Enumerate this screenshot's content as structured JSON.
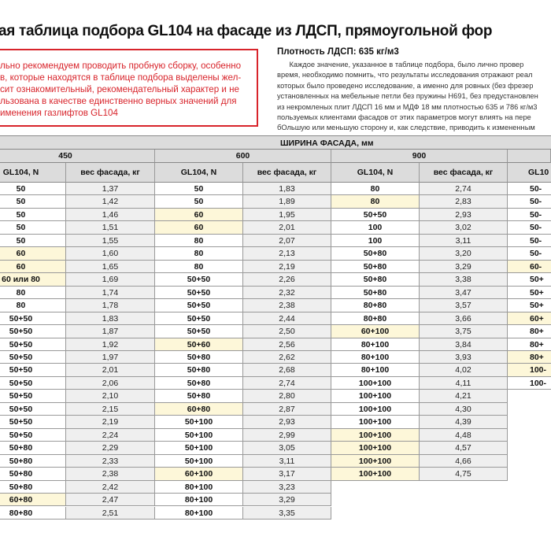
{
  "title": "ая таблица подбора GL104 на фасаде из ЛДСП, прямоугольной фор",
  "warning_lines": [
    "льно рекомендуем проводить пробную сборку, особенно",
    "в, которые находятся в таблице подбора выделены жел-",
    "сит ознакомительный, рекомендательный характер и не",
    "льзована в качестве единственно верных значений для",
    "именения газлифтов GL104"
  ],
  "density": "Плотность ЛДСП: 635 кг/м3",
  "paragraph_lines": [
    "      Каждое значение, указанное в таблице подбора, было лично провер",
    "время, необходимо помнить, что результаты исследования отражают реал",
    "которых было проведено исследование, а именно для ровных (без фрезер",
    "установленных на мебельные петли без пружины H691, без предустановлен",
    "из некромленых плит ЛДСП 16 мм и МДФ 18 мм плотностью 635 и 786  кг/м3",
    "пользуемых клиентами фасадов от этих параметров могут влиять на пере",
    "бОльшую или меньшую сторону и, как следствие, приводить к измененным"
  ],
  "colors": {
    "warning": "#d8242b",
    "highlight": "#fdf7d9",
    "header": "#dcdcdc"
  },
  "table": {
    "caption": "ШИРИНА ФАСАДА, мм",
    "groups": [
      {
        "width": "450",
        "col_gl": "GL104, N",
        "col_w": "вес фасада, кг",
        "rows": [
          [
            "50",
            "1,37",
            0
          ],
          [
            "50",
            "1,42",
            0
          ],
          [
            "50",
            "1,46",
            0
          ],
          [
            "50",
            "1,51",
            0
          ],
          [
            "50",
            "1,55",
            0
          ],
          [
            "60",
            "1,60",
            1
          ],
          [
            "60",
            "1,65",
            1
          ],
          [
            "60 или 80",
            "1,69",
            1
          ],
          [
            "80",
            "1,74",
            0
          ],
          [
            "80",
            "1,78",
            0
          ],
          [
            "50+50",
            "1,83",
            0
          ],
          [
            "50+50",
            "1,87",
            0
          ],
          [
            "50+50",
            "1,92",
            0
          ],
          [
            "50+50",
            "1,97",
            0
          ],
          [
            "50+50",
            "2,01",
            0
          ],
          [
            "50+50",
            "2,06",
            0
          ],
          [
            "50+50",
            "2,10",
            0
          ],
          [
            "50+50",
            "2,15",
            0
          ],
          [
            "50+50",
            "2,19",
            0
          ],
          [
            "50+50",
            "2,24",
            0
          ],
          [
            "50+80",
            "2,29",
            0
          ],
          [
            "50+80",
            "2,33",
            0
          ],
          [
            "50+80",
            "2,38",
            0
          ],
          [
            "50+80",
            "2,42",
            0
          ],
          [
            "60+80",
            "2,47",
            1
          ],
          [
            "80+80",
            "2,51",
            0
          ]
        ]
      },
      {
        "width": "600",
        "col_gl": "GL104, N",
        "col_w": "вес фасада, кг",
        "rows": [
          [
            "50",
            "1,83",
            0
          ],
          [
            "50",
            "1,89",
            0
          ],
          [
            "60",
            "1,95",
            1
          ],
          [
            "60",
            "2,01",
            1
          ],
          [
            "80",
            "2,07",
            0
          ],
          [
            "80",
            "2,13",
            0
          ],
          [
            "80",
            "2,19",
            0
          ],
          [
            "50+50",
            "2,26",
            0
          ],
          [
            "50+50",
            "2,32",
            0
          ],
          [
            "50+50",
            "2,38",
            0
          ],
          [
            "50+50",
            "2,44",
            0
          ],
          [
            "50+50",
            "2,50",
            0
          ],
          [
            "50+60",
            "2,56",
            1
          ],
          [
            "50+80",
            "2,62",
            0
          ],
          [
            "50+80",
            "2,68",
            0
          ],
          [
            "50+80",
            "2,74",
            0
          ],
          [
            "50+80",
            "2,80",
            0
          ],
          [
            "60+80",
            "2,87",
            1
          ],
          [
            "50+100",
            "2,93",
            0
          ],
          [
            "50+100",
            "2,99",
            0
          ],
          [
            "50+100",
            "3,05",
            0
          ],
          [
            "50+100",
            "3,11",
            0
          ],
          [
            "60+100",
            "3,17",
            1
          ],
          [
            "80+100",
            "3,23",
            0
          ],
          [
            "80+100",
            "3,29",
            0
          ],
          [
            "80+100",
            "3,35",
            0
          ]
        ]
      },
      {
        "width": "900",
        "col_gl": "GL104, N",
        "col_w": "вес фасада, кг",
        "rows": [
          [
            "80",
            "2,74",
            0
          ],
          [
            "80",
            "2,83",
            1
          ],
          [
            "50+50",
            "2,93",
            0
          ],
          [
            "100",
            "3,02",
            0
          ],
          [
            "100",
            "3,11",
            0
          ],
          [
            "50+80",
            "3,20",
            0
          ],
          [
            "50+80",
            "3,29",
            0
          ],
          [
            "50+80",
            "3,38",
            0
          ],
          [
            "50+80",
            "3,47",
            0
          ],
          [
            "80+80",
            "3,57",
            0
          ],
          [
            "80+80",
            "3,66",
            0
          ],
          [
            "60+100",
            "3,75",
            1
          ],
          [
            "80+100",
            "3,84",
            0
          ],
          [
            "80+100",
            "3,93",
            0
          ],
          [
            "80+100",
            "4,02",
            0
          ],
          [
            "100+100",
            "4,11",
            0
          ],
          [
            "100+100",
            "4,21",
            0
          ],
          [
            "100+100",
            "4,30",
            0
          ],
          [
            "100+100",
            "4,39",
            0
          ],
          [
            "100+100",
            "4,48",
            1
          ],
          [
            "100+100",
            "4,57",
            1
          ],
          [
            "100+100",
            "4,66",
            1
          ],
          [
            "100+100",
            "4,75",
            1
          ]
        ]
      },
      {
        "width": "",
        "col_gl": "GL10",
        "col_w": "",
        "rows": [
          [
            "50-",
            "",
            0
          ],
          [
            "50-",
            "",
            0
          ],
          [
            "50-",
            "",
            0
          ],
          [
            "50-",
            "",
            0
          ],
          [
            "50-",
            "",
            0
          ],
          [
            "50-",
            "",
            0
          ],
          [
            "60-",
            "",
            1
          ],
          [
            "50+",
            "",
            0
          ],
          [
            "50+",
            "",
            0
          ],
          [
            "50+",
            "",
            0
          ],
          [
            "60+",
            "",
            1
          ],
          [
            "80+",
            "",
            0
          ],
          [
            "80+",
            "",
            0
          ],
          [
            "80+",
            "",
            1
          ],
          [
            "100-",
            "",
            1
          ],
          [
            "100-",
            "",
            0
          ]
        ]
      }
    ]
  }
}
